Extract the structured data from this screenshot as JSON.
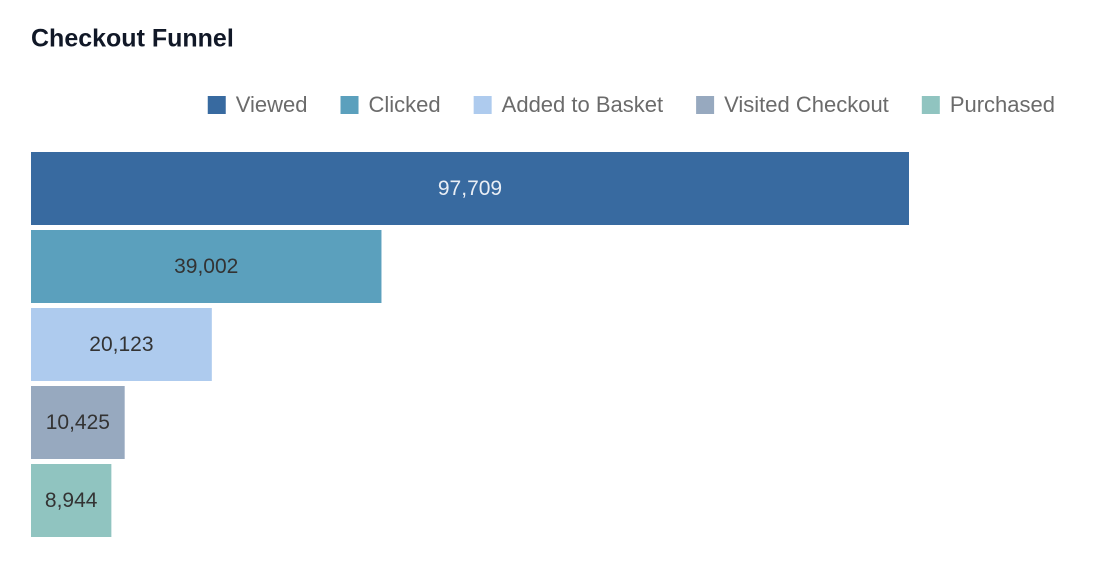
{
  "chart_data": {
    "type": "bar",
    "orientation": "horizontal",
    "title": "Checkout Funnel",
    "series": [
      {
        "name": "Viewed",
        "color": "#386aa0",
        "values": [
          97709
        ],
        "value_labels": [
          "97,709"
        ]
      },
      {
        "name": "Clicked",
        "color": "#5ba0bd",
        "values": [
          39002
        ],
        "value_labels": [
          "39,002"
        ]
      },
      {
        "name": "Added to Basket",
        "color": "#aecbee",
        "values": [
          20123
        ],
        "value_labels": [
          "20,123"
        ]
      },
      {
        "name": "Visited Checkout",
        "color": "#97a9bf",
        "values": [
          10425
        ],
        "value_labels": [
          "10,425"
        ]
      },
      {
        "name": "Purchased",
        "color": "#90c4c0",
        "values": [
          8944
        ],
        "value_labels": [
          "8,944"
        ]
      }
    ],
    "legend": "top-right"
  }
}
